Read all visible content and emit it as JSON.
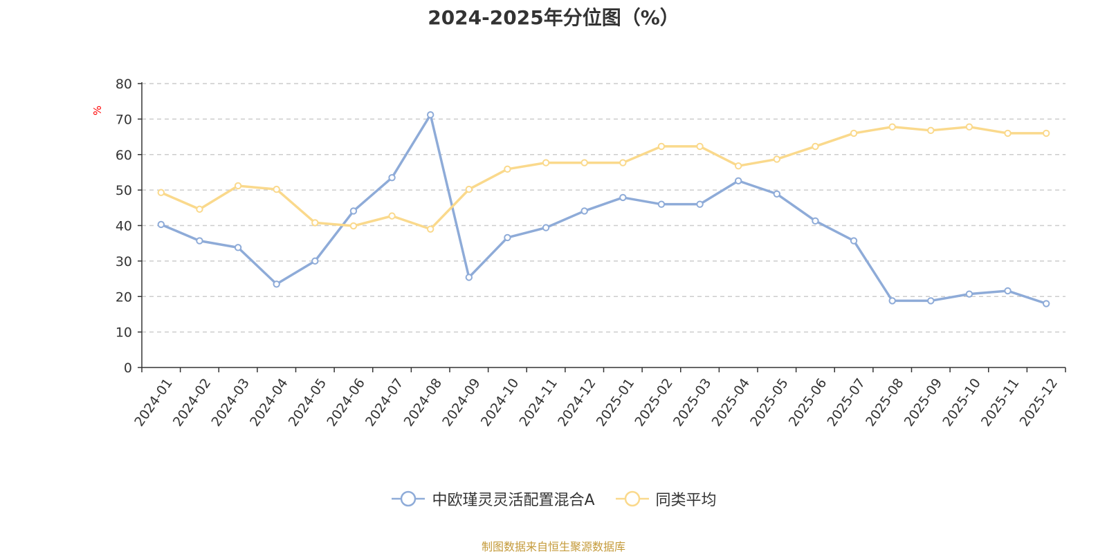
{
  "chart_data": {
    "type": "line",
    "title": "2024-2025年分位图（%）",
    "ylabel": "%",
    "xlabel": "",
    "ylim": [
      0,
      80
    ],
    "yticks": [
      0,
      10,
      20,
      30,
      40,
      50,
      60,
      70,
      80
    ],
    "grid": "horizontal-dashed",
    "legend_position": "bottom-center",
    "categories": [
      "2024-01",
      "2024-02",
      "2024-03",
      "2024-04",
      "2024-05",
      "2024-06",
      "2024-07",
      "2024-08",
      "2024-09",
      "2024-10",
      "2024-11",
      "2024-12",
      "2025-01",
      "2025-02",
      "2025-03",
      "2025-04",
      "2025-05",
      "2025-06",
      "2025-07",
      "2025-08",
      "2025-09",
      "2025-10",
      "2025-11",
      "2025-12"
    ],
    "series": [
      {
        "name": "中欧瑾灵灵活配置混合A",
        "color": "#8eabd8",
        "values": [
          40.3,
          35.7,
          33.8,
          23.5,
          30.0,
          44.1,
          53.5,
          71.2,
          25.4,
          36.6,
          39.4,
          44.1,
          47.9,
          46.0,
          46.0,
          52.6,
          48.9,
          41.3,
          35.7,
          18.8,
          18.8,
          20.7,
          21.6,
          18.0
        ]
      },
      {
        "name": "同类平均",
        "color": "#fad98c",
        "values": [
          49.3,
          44.6,
          51.2,
          50.2,
          40.8,
          39.9,
          42.7,
          39.0,
          50.2,
          55.9,
          57.7,
          57.7,
          57.7,
          62.3,
          62.3,
          56.8,
          58.7,
          62.3,
          66.0,
          67.8,
          66.8,
          67.8,
          66.0,
          66.0
        ]
      }
    ]
  },
  "source_text": "制图数据来自恒生聚源数据库"
}
